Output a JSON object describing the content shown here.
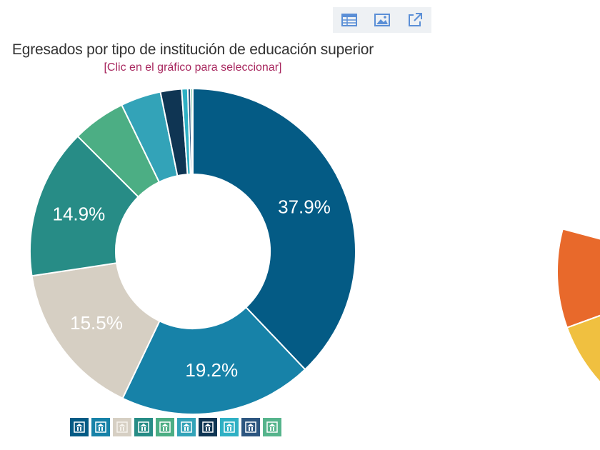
{
  "toolbar": {
    "buttons": [
      {
        "icon": "table-icon"
      },
      {
        "icon": "image-icon"
      },
      {
        "icon": "external-link-icon"
      }
    ],
    "color": "#5b8fd6"
  },
  "chart_data": {
    "type": "pie",
    "title": "Egresados por tipo de institución de educación superior",
    "subtitle": "[Clic en el gráfico para seleccionar]",
    "donut": true,
    "slices": [
      {
        "value": 37.9,
        "label": "37.9%",
        "color": "#045b85",
        "icon": "university-icon"
      },
      {
        "value": 19.2,
        "label": "19.2%",
        "color": "#1782a8",
        "icon": "institute-icon"
      },
      {
        "value": 15.5,
        "label": "15.5%",
        "color": "#d6cfc3",
        "icon": "school-icon"
      },
      {
        "value": 14.9,
        "label": "14.9%",
        "color": "#278c86",
        "icon": "teacher-college-icon"
      },
      {
        "value": 5.3,
        "label": "",
        "color": "#4cae84",
        "icon": "technical-school-icon"
      },
      {
        "value": 4.0,
        "label": "",
        "color": "#33a3b8",
        "icon": "academy-icon"
      },
      {
        "value": 2.1,
        "label": "",
        "color": "#0f3553",
        "icon": "military-school-icon"
      },
      {
        "value": 0.6,
        "label": "",
        "color": "#2fb0c4",
        "icon": "arts-school-icon"
      },
      {
        "value": 0.3,
        "label": "",
        "color": "#2d5680",
        "icon": "police-school-icon"
      },
      {
        "value": 0.2,
        "label": "",
        "color": "#56b48c",
        "icon": "other-institution-icon"
      }
    ],
    "start_angle_deg": 0,
    "direction": "clockwise"
  },
  "second_chart": {
    "type": "pie",
    "visible_colors": [
      "#e8692b",
      "#f0c040"
    ]
  }
}
